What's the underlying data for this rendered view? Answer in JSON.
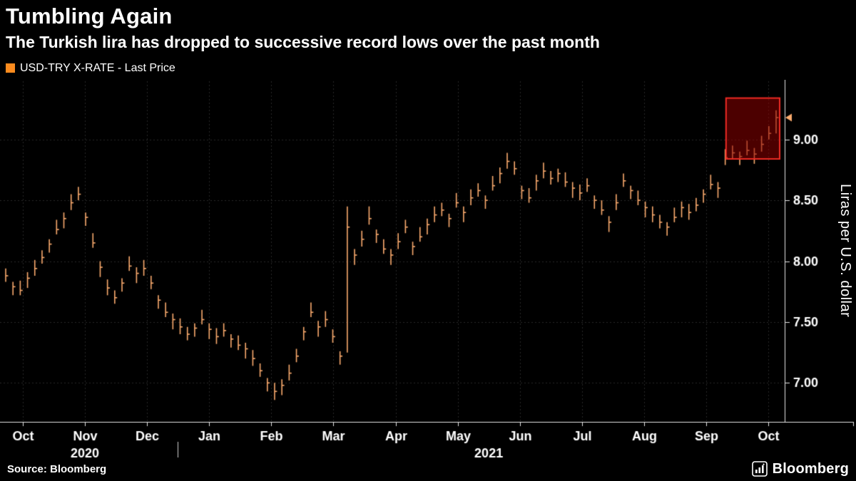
{
  "header": {
    "title": "Tumbling Again",
    "subtitle": "The Turkish lira has dropped to successive record lows over the past month",
    "legend": {
      "label": "USD-TRY X-RATE - Last Price",
      "swatch_color": "#fb8b1e"
    }
  },
  "footer": {
    "source": "Source: Bloomberg",
    "logo": "Bloomberg"
  },
  "chart_data": {
    "type": "bar",
    "subtype": "hlc-price-bars",
    "title": "USD-TRY X-RATE - Last Price",
    "ylabel": "Liras per U.S. dollar",
    "ylim": [
      6.68,
      9.49
    ],
    "yticks": [
      7.0,
      7.5,
      8.0,
      8.5,
      9.0
    ],
    "grid": "dotted",
    "legend_position": "top-left",
    "series_color": "#fbab6e",
    "x_axis": {
      "months": [
        "Oct",
        "Nov",
        "Dec",
        "Jan",
        "Feb",
        "Mar",
        "Apr",
        "May",
        "Jun",
        "Jul",
        "Aug",
        "Sep",
        "Oct"
      ],
      "years": [
        {
          "label": "2020",
          "month_span": [
            0,
            2
          ]
        },
        {
          "label": "2021",
          "month_span": [
            3,
            12
          ]
        }
      ]
    },
    "last_price": 9.18,
    "highlight_box": {
      "start_frac": 0.935,
      "end_frac": 1.0,
      "value_low": 8.84,
      "value_high": 9.34,
      "stroke": "#ef2b24",
      "fill": "rgba(139,0,0,0.55)"
    },
    "bars": [
      [
        7.83,
        7.88,
        7.94
      ],
      [
        7.72,
        7.79,
        7.83
      ],
      [
        7.72,
        7.76,
        7.84
      ],
      [
        7.78,
        7.86,
        7.91
      ],
      [
        7.88,
        7.94,
        8.01
      ],
      [
        7.98,
        8.03,
        8.09
      ],
      [
        8.07,
        8.14,
        8.18
      ],
      [
        8.22,
        8.26,
        8.34
      ],
      [
        8.27,
        8.35,
        8.4
      ],
      [
        8.42,
        8.48,
        8.55
      ],
      [
        8.5,
        8.55,
        8.61
      ],
      [
        8.29,
        8.36,
        8.4
      ],
      [
        8.11,
        8.15,
        8.23
      ],
      [
        7.87,
        7.95,
        8.0
      ],
      [
        7.72,
        7.78,
        7.85
      ],
      [
        7.65,
        7.7,
        7.76
      ],
      [
        7.75,
        7.82,
        7.86
      ],
      [
        7.92,
        7.96,
        8.04
      ],
      [
        7.82,
        7.9,
        7.95
      ],
      [
        7.88,
        7.94,
        8.01
      ],
      [
        7.77,
        7.82,
        7.88
      ],
      [
        7.61,
        7.68,
        7.72
      ],
      [
        7.54,
        7.58,
        7.66
      ],
      [
        7.44,
        7.52,
        7.57
      ],
      [
        7.4,
        7.46,
        7.53
      ],
      [
        7.35,
        7.4,
        7.46
      ],
      [
        7.38,
        7.45,
        7.49
      ],
      [
        7.48,
        7.52,
        7.6
      ],
      [
        7.36,
        7.44,
        7.49
      ],
      [
        7.32,
        7.38,
        7.45
      ],
      [
        7.38,
        7.43,
        7.49
      ],
      [
        7.29,
        7.36,
        7.4
      ],
      [
        7.27,
        7.31,
        7.39
      ],
      [
        7.2,
        7.28,
        7.33
      ],
      [
        7.14,
        7.2,
        7.27
      ],
      [
        7.05,
        7.1,
        7.16
      ],
      [
        6.93,
        7.0,
        7.04
      ],
      [
        6.86,
        6.93,
        7.0
      ],
      [
        6.9,
        6.98,
        7.03
      ],
      [
        7.02,
        7.08,
        7.15
      ],
      [
        7.17,
        7.22,
        7.28
      ],
      [
        7.35,
        7.42,
        7.46
      ],
      [
        7.54,
        7.58,
        7.66
      ],
      [
        7.38,
        7.46,
        7.51
      ],
      [
        7.46,
        7.52,
        7.59
      ],
      [
        7.33,
        7.38,
        7.44
      ],
      [
        7.15,
        7.22,
        7.26
      ],
      [
        7.25,
        8.28,
        8.45
      ],
      [
        7.97,
        8.05,
        8.1
      ],
      [
        8.12,
        8.18,
        8.25
      ],
      [
        8.3,
        8.35,
        8.45
      ],
      [
        8.15,
        8.22,
        8.26
      ],
      [
        8.06,
        8.1,
        8.18
      ],
      [
        7.97,
        8.05,
        8.1
      ],
      [
        8.1,
        8.16,
        8.23
      ],
      [
        8.23,
        8.28,
        8.34
      ],
      [
        8.05,
        8.12,
        8.16
      ],
      [
        8.16,
        8.2,
        8.28
      ],
      [
        8.22,
        8.3,
        8.35
      ],
      [
        8.32,
        8.38,
        8.45
      ],
      [
        8.37,
        8.42,
        8.48
      ],
      [
        8.28,
        8.35,
        8.39
      ],
      [
        8.44,
        8.48,
        8.56
      ],
      [
        8.32,
        8.4,
        8.45
      ],
      [
        8.46,
        8.52,
        8.59
      ],
      [
        8.53,
        8.58,
        8.64
      ],
      [
        8.43,
        8.5,
        8.54
      ],
      [
        8.58,
        8.62,
        8.7
      ],
      [
        8.64,
        8.72,
        8.77
      ],
      [
        8.76,
        8.82,
        8.89
      ],
      [
        8.71,
        8.76,
        8.82
      ],
      [
        8.51,
        8.58,
        8.62
      ],
      [
        8.48,
        8.52,
        8.6
      ],
      [
        8.58,
        8.66,
        8.71
      ],
      [
        8.68,
        8.74,
        8.81
      ],
      [
        8.63,
        8.68,
        8.74
      ],
      [
        8.65,
        8.72,
        8.76
      ],
      [
        8.61,
        8.65,
        8.73
      ],
      [
        8.52,
        8.6,
        8.65
      ],
      [
        8.5,
        8.56,
        8.63
      ],
      [
        8.57,
        8.62,
        8.68
      ],
      [
        8.43,
        8.5,
        8.54
      ],
      [
        8.38,
        8.42,
        8.5
      ],
      [
        8.24,
        8.32,
        8.37
      ],
      [
        8.42,
        8.48,
        8.55
      ],
      [
        8.61,
        8.66,
        8.72
      ],
      [
        8.51,
        8.58,
        8.62
      ],
      [
        8.46,
        8.5,
        8.58
      ],
      [
        8.36,
        8.44,
        8.49
      ],
      [
        8.32,
        8.38,
        8.45
      ],
      [
        8.27,
        8.32,
        8.38
      ],
      [
        8.21,
        8.28,
        8.32
      ],
      [
        8.32,
        8.36,
        8.44
      ],
      [
        8.36,
        8.44,
        8.49
      ],
      [
        8.34,
        8.4,
        8.47
      ],
      [
        8.41,
        8.46,
        8.52
      ],
      [
        8.48,
        8.55,
        8.59
      ],
      [
        8.59,
        8.63,
        8.71
      ],
      [
        8.52,
        8.6,
        8.65
      ],
      [
        8.79,
        8.85,
        8.92
      ],
      [
        8.84,
        8.89,
        8.95
      ],
      [
        8.79,
        8.86,
        8.9
      ],
      [
        8.87,
        8.91,
        8.99
      ],
      [
        8.8,
        8.88,
        8.93
      ],
      [
        8.9,
        8.96,
        9.03
      ],
      [
        9.0,
        9.05,
        9.11
      ],
      [
        9.05,
        9.18,
        9.24
      ]
    ]
  }
}
